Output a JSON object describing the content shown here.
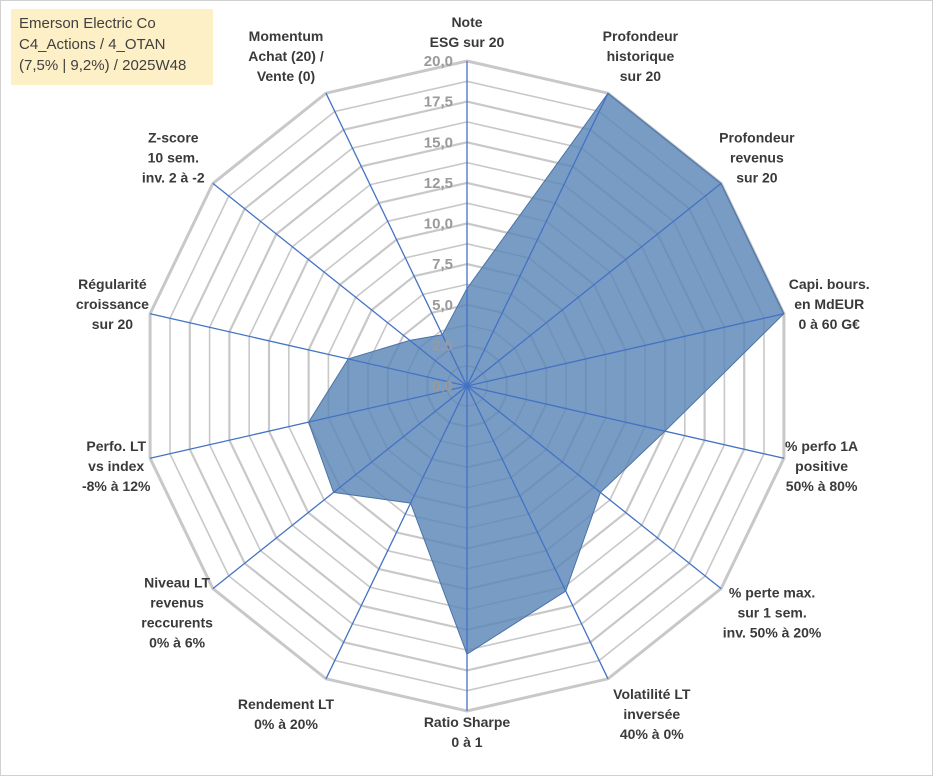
{
  "chart_data": {
    "type": "radar",
    "title_lines": [
      "Emerson Electric Co",
      "C4_Actions / 4_OTAN",
      "(7,5% | 9,2%) / 2025W48"
    ],
    "rmin": 0,
    "rmax": 20,
    "tick_values": [
      0,
      2.5,
      5,
      7.5,
      10,
      12.5,
      15,
      17.5,
      20
    ],
    "tick_labels": [
      "0,0",
      "2,5",
      "5,0",
      "7,5",
      "10,0",
      "12,5",
      "15,0",
      "17,5",
      "20,0"
    ],
    "axes": [
      {
        "label": [
          "Note",
          "ESG sur 20"
        ],
        "value": 6.0
      },
      {
        "label": [
          "Profondeur",
          "historique",
          "sur 20"
        ],
        "value": 20.0
      },
      {
        "label": [
          "Profondeur",
          "revenus",
          "sur 20"
        ],
        "value": 20.0
      },
      {
        "label": [
          "Capi. bours.",
          "en MdEUR",
          "0 à 60 G€"
        ],
        "value": 20.0
      },
      {
        "label": [
          "% perfo 1A",
          "positive",
          "50% à 80%"
        ],
        "value": 12.5
      },
      {
        "label": [
          "% perte max.",
          "sur 1 sem.",
          "inv. 50% à 20%"
        ],
        "value": 10.5
      },
      {
        "label": [
          "Volatilité LT",
          "inversée",
          "40% à 0%"
        ],
        "value": 14.0
      },
      {
        "label": [
          "Ratio Sharpe",
          "0 à 1"
        ],
        "value": 16.5
      },
      {
        "label": [
          "Rendement LT",
          "0% à 20%"
        ],
        "value": 8.0
      },
      {
        "label": [
          "Niveau LT",
          "revenus",
          "reccurents",
          "0% à 6%"
        ],
        "value": 10.5
      },
      {
        "label": [
          "Perfo. LT",
          "vs index",
          "-8% à 12%"
        ],
        "value": 10.0
      },
      {
        "label": [
          "Régularité",
          "croissance",
          "sur 20"
        ],
        "value": 7.5
      },
      {
        "label": [
          "Z-score",
          "10 sem.",
          "inv. 2 à -2"
        ],
        "value": 4.5
      },
      {
        "label": [
          "Momentum",
          "Achat (20) /",
          "Vente (0)"
        ],
        "value": 3.5
      }
    ],
    "colors": {
      "fill": "#5b86b8",
      "fill_stroke": "#4a73a6",
      "spoke": "#4472c4",
      "grid": "#c8c8c8",
      "title_bg": "#fdf0c7"
    }
  }
}
